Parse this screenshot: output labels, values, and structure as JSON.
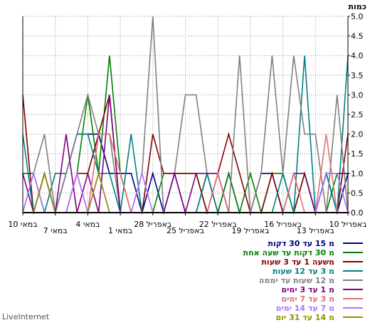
{
  "chart_data": {
    "type": "line",
    "ylabel": "כמות",
    "ylim": [
      0,
      5
    ],
    "y_ticks": [
      "0.0",
      "0.5",
      "1.0",
      "1.5",
      "2.0",
      "2.5",
      "3.0",
      "3.5",
      "4.0",
      "4.5",
      "5.0"
    ],
    "x_tick_labels": [
      "10 באפריל",
      "13 באפריל",
      "16 באפריל",
      "19 באפריל",
      "22 באפריל",
      "25 באפריל",
      "28 באפריל",
      "1 במאי",
      "4 במאי",
      "7 במאי",
      "10 במאי"
    ],
    "x_start": "2024-04-10",
    "x_end": "2024-05-10",
    "series": [
      {
        "name": "מ 15 עד 30 דקות",
        "color": "#000080",
        "values": [
          1,
          0,
          1,
          0,
          0,
          0,
          0,
          1,
          1,
          0,
          0,
          1,
          0,
          1,
          0,
          0,
          1,
          0,
          1,
          0,
          1,
          1,
          1,
          2,
          2,
          2,
          1,
          0,
          1,
          0,
          0
        ]
      },
      {
        "name": "מ 30 דקות עד שעה אחת",
        "color": "#008000",
        "values": [
          1,
          1,
          0,
          0,
          1,
          0,
          1,
          1,
          0,
          1,
          0,
          1,
          0,
          0,
          1,
          1,
          1,
          1,
          0,
          0,
          0,
          1,
          4,
          1,
          3,
          1,
          0,
          0,
          0,
          1,
          1
        ]
      },
      {
        "name": "משעה 1 עד 3 שעות",
        "color": "#800000",
        "values": [
          2,
          0,
          0,
          0,
          1,
          0,
          0,
          1,
          0,
          0,
          1,
          2,
          1,
          0,
          1,
          1,
          1,
          1,
          2,
          0,
          0,
          0,
          3,
          2,
          1,
          1,
          0,
          0,
          1,
          0,
          3
        ]
      },
      {
        "name": "מ 3 עד 12 שעות",
        "color": "#008080",
        "values": [
          4,
          0,
          1,
          0,
          4,
          0,
          1,
          0,
          0,
          0,
          0,
          0,
          0,
          1,
          0,
          0,
          0,
          0,
          0,
          0,
          2,
          0,
          1,
          1,
          2,
          2,
          1,
          1,
          0,
          0,
          2
        ]
      },
      {
        "name": "מ 12 שעות עד יממה",
        "color": "#808080",
        "values": [
          0,
          3,
          0,
          2,
          2,
          4,
          1,
          4,
          1,
          0,
          4,
          0,
          1,
          1,
          3,
          3,
          1,
          0,
          5,
          1,
          0,
          0,
          2,
          2,
          3,
          2,
          1,
          0,
          2,
          1,
          0
        ]
      },
      {
        "name": "מ 1 עד 3 ימים",
        "color": "#800080",
        "values": [
          1,
          1,
          1,
          0,
          1,
          1,
          0,
          0,
          0,
          0,
          0,
          0,
          1,
          1,
          1,
          0,
          1,
          0,
          0,
          0,
          0,
          0,
          3,
          0,
          1,
          0,
          2,
          0,
          1,
          0,
          1
        ]
      },
      {
        "name": "מ 3 עד 7 ימים",
        "color": "#e07070",
        "values": [
          0,
          0,
          2,
          0,
          0,
          1,
          0,
          0,
          0,
          0,
          0,
          0,
          1,
          0,
          0,
          0,
          0,
          0,
          0,
          0,
          0,
          1,
          2,
          2,
          0,
          1,
          0,
          0,
          1,
          0,
          0
        ]
      },
      {
        "name": "מ 7 עד 14 ימים",
        "color": "#b070ff",
        "values": [
          0,
          1,
          1,
          0,
          0,
          0,
          0,
          0,
          0,
          0,
          0,
          0,
          0,
          0,
          0,
          0,
          0,
          0,
          0,
          1,
          0,
          0,
          0,
          1,
          0,
          1,
          0,
          0,
          0,
          1,
          0
        ]
      },
      {
        "name": "מ 14 עד 31 יום",
        "color": "#909000",
        "values": [
          0,
          0,
          0,
          0,
          0,
          0,
          0,
          0,
          0,
          0,
          0,
          0,
          0,
          0,
          0,
          0,
          0,
          0,
          0,
          0,
          0,
          0,
          0,
          1,
          0,
          0,
          0,
          0,
          1,
          0,
          0
        ]
      }
    ]
  },
  "brand": "LiveInternet"
}
